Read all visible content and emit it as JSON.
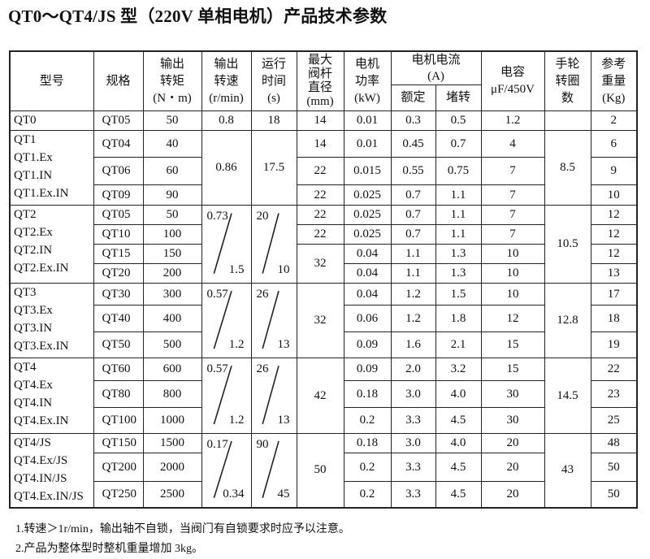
{
  "title": "QT0～QT4/JS 型（220V 单相电机）产品技术参数",
  "header": {
    "model": "型号",
    "spec": "规格",
    "torque": [
      "输出",
      "转矩",
      "(N・m)"
    ],
    "speed": [
      "输出",
      "转速",
      "(r/min)"
    ],
    "time": [
      "运行",
      "时间",
      "(s)"
    ],
    "diameter": [
      "最大",
      "阀杆",
      "直径",
      "(mm)"
    ],
    "power": [
      "电机",
      "功率",
      "(kW)"
    ],
    "current": [
      "电机电流",
      "(A)"
    ],
    "rated": "额定",
    "locked": "堵转",
    "capacitor": [
      "电容",
      "μF/450V"
    ],
    "handwheel": [
      "手轮",
      "转圈",
      "数"
    ],
    "weight": [
      "参考",
      "重量",
      "(Kg)"
    ]
  },
  "groups": [
    {
      "models": [
        "QT0"
      ],
      "speed": {
        "value": "0.8"
      },
      "time": {
        "value": "18"
      },
      "handwheel": "",
      "diameters": [
        {
          "value": "14",
          "span": 1
        }
      ],
      "rows": [
        {
          "spec": "QT05",
          "torque": "50",
          "power": "0.01",
          "rated": "0.3",
          "locked": "0.5",
          "capacitor": "1.2",
          "weight": "2"
        }
      ]
    },
    {
      "models": [
        "QT1",
        "QT1.Ex",
        "QT1.IN",
        "QT1.Ex.IN"
      ],
      "speed": {
        "value": "0.86"
      },
      "time": {
        "value": "17.5"
      },
      "handwheel": "8.5",
      "diameters": [
        {
          "value": "14",
          "span": 1
        },
        {
          "value": "22",
          "span": 1
        },
        {
          "value": "22",
          "span": 1
        }
      ],
      "rows": [
        {
          "spec": "QT04",
          "torque": "40",
          "power": "0.01",
          "rated": "0.45",
          "locked": "0.7",
          "capacitor": "4",
          "weight": "6"
        },
        {
          "spec": "QT06",
          "torque": "60",
          "power": "0.015",
          "rated": "0.55",
          "locked": "0.75",
          "capacitor": "7",
          "weight": "9"
        },
        {
          "spec": "QT09",
          "torque": "90",
          "power": "0.025",
          "rated": "0.7",
          "locked": "1.1",
          "capacitor": "7",
          "weight": "10"
        }
      ]
    },
    {
      "models": [
        "QT2",
        "QT2.Ex",
        "QT2.IN",
        "QT2.Ex.IN"
      ],
      "speed": {
        "top": "0.73",
        "bottom": "1.5"
      },
      "time": {
        "top": "20",
        "bottom": "10"
      },
      "handwheel": "10.5",
      "diameters": [
        {
          "value": "22",
          "span": 1
        },
        {
          "value": "22",
          "span": 1
        },
        {
          "value": "32",
          "span": 2
        }
      ],
      "rows": [
        {
          "spec": "QT05",
          "torque": "50",
          "power": "0.025",
          "rated": "0.7",
          "locked": "1.1",
          "capacitor": "7",
          "weight": "12"
        },
        {
          "spec": "QT10",
          "torque": "100",
          "power": "0.025",
          "rated": "0.7",
          "locked": "1.1",
          "capacitor": "7",
          "weight": "12"
        },
        {
          "spec": "QT15",
          "torque": "150",
          "power": "0.04",
          "rated": "1.1",
          "locked": "1.3",
          "capacitor": "10",
          "weight": "12"
        },
        {
          "spec": "QT20",
          "torque": "200",
          "power": "0.04",
          "rated": "1.1",
          "locked": "1.3",
          "capacitor": "10",
          "weight": "13"
        }
      ]
    },
    {
      "models": [
        "QT3",
        "QT3.Ex",
        "QT3.IN",
        "QT3.Ex.IN"
      ],
      "speed": {
        "top": "0.57",
        "bottom": "1.2"
      },
      "time": {
        "top": "26",
        "bottom": "13"
      },
      "handwheel": "12.8",
      "diameters": [
        {
          "value": "32",
          "span": 3
        }
      ],
      "rows": [
        {
          "spec": "QT30",
          "torque": "300",
          "power": "0.04",
          "rated": "1.2",
          "locked": "1.5",
          "capacitor": "10",
          "weight": "17"
        },
        {
          "spec": "QT40",
          "torque": "400",
          "power": "0.06",
          "rated": "1.2",
          "locked": "1.8",
          "capacitor": "12",
          "weight": "18"
        },
        {
          "spec": "QT50",
          "torque": "500",
          "power": "0.09",
          "rated": "1.6",
          "locked": "2.1",
          "capacitor": "15",
          "weight": "19"
        }
      ]
    },
    {
      "models": [
        "QT4",
        "QT4.Ex",
        "QT4.IN",
        "QT4.Ex.IN"
      ],
      "speed": {
        "top": "0.57",
        "bottom": "1.2"
      },
      "time": {
        "top": "26",
        "bottom": "13"
      },
      "handwheel": "14.5",
      "diameters": [
        {
          "value": "42",
          "span": 3
        }
      ],
      "rows": [
        {
          "spec": "QT60",
          "torque": "600",
          "power": "0.09",
          "rated": "2.0",
          "locked": "3.2",
          "capacitor": "15",
          "weight": "22"
        },
        {
          "spec": "QT80",
          "torque": "800",
          "power": "0.18",
          "rated": "3.0",
          "locked": "4.0",
          "capacitor": "30",
          "weight": "23"
        },
        {
          "spec": "QT100",
          "torque": "1000",
          "power": "0.2",
          "rated": "3.3",
          "locked": "4.5",
          "capacitor": "30",
          "weight": "25"
        }
      ]
    },
    {
      "models": [
        "QT4/JS",
        "QT4.Ex/JS",
        "QT4.IN/JS",
        "QT4.Ex.IN/JS"
      ],
      "speed": {
        "top": "0.17",
        "bottom": "0.34"
      },
      "time": {
        "top": "90",
        "bottom": "45"
      },
      "handwheel": "43",
      "diameters": [
        {
          "value": "50",
          "span": 3
        }
      ],
      "rows": [
        {
          "spec": "QT150",
          "torque": "1500",
          "power": "0.18",
          "rated": "3.0",
          "locked": "4.0",
          "capacitor": "20",
          "weight": "48"
        },
        {
          "spec": "QT200",
          "torque": "2000",
          "power": "0.2",
          "rated": "3.3",
          "locked": "4.5",
          "capacitor": "20",
          "weight": "50"
        },
        {
          "spec": "QT250",
          "torque": "2500",
          "power": "0.2",
          "rated": "3.3",
          "locked": "4.5",
          "capacitor": "20",
          "weight": "50"
        }
      ]
    }
  ],
  "notes": [
    "1.转速＞1r/min，输出轴不自锁，当阀门有自锁要求时应予以注意。",
    "2.产品为整体型时整机重量增加 3kg。"
  ]
}
